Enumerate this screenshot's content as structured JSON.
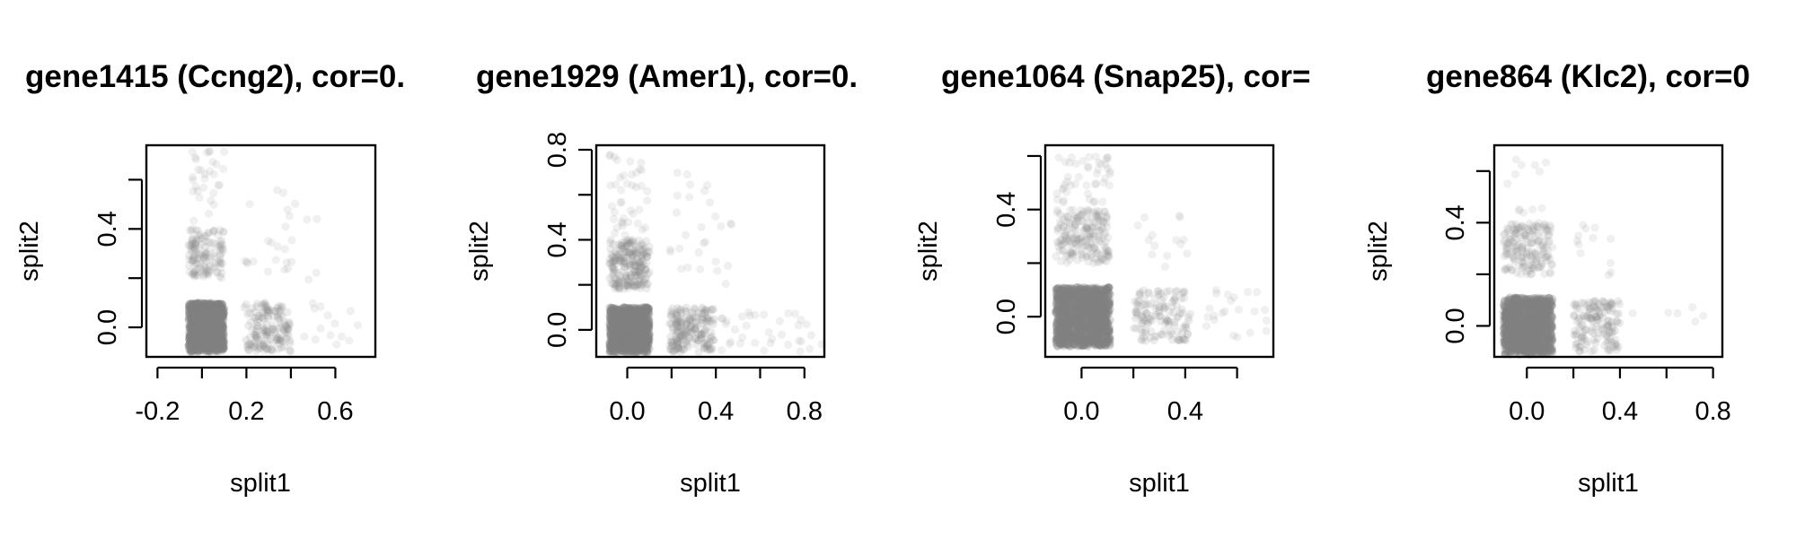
{
  "chart_data": [
    {
      "type": "scatter",
      "title": "gene1415 (Ccng2), cor=0.",
      "xlabel": "split1",
      "ylabel": "split2",
      "xticks": [
        "-0.2",
        "0.2",
        "0.6"
      ],
      "yticks": [
        "0.0",
        "0.4"
      ],
      "xlim": [
        -0.25,
        0.78
      ],
      "ylim": [
        -0.12,
        0.74
      ],
      "grid": false,
      "point_color": "#808080",
      "clusters": [
        {
          "x_range": [
            -0.06,
            0.1
          ],
          "y_range": [
            -0.1,
            0.1
          ],
          "count": 900,
          "opacity": 0.3
        },
        {
          "x_range": [
            -0.06,
            0.1
          ],
          "y_range": [
            0.2,
            0.4
          ],
          "count": 140,
          "opacity": 0.13
        },
        {
          "x_range": [
            0.19,
            0.4
          ],
          "y_range": [
            -0.1,
            0.1
          ],
          "count": 150,
          "opacity": 0.15
        },
        {
          "x_range": [
            0.42,
            0.72
          ],
          "y_range": [
            -0.07,
            0.1
          ],
          "count": 14,
          "opacity": 0.12
        },
        {
          "x_range": [
            0.19,
            0.52
          ],
          "y_range": [
            0.18,
            0.56
          ],
          "count": 26,
          "opacity": 0.12
        },
        {
          "x_range": [
            -0.05,
            0.1
          ],
          "y_range": [
            0.42,
            0.72
          ],
          "count": 30,
          "opacity": 0.12
        }
      ]
    },
    {
      "type": "scatter",
      "title": "gene1929 (Amer1), cor=0.",
      "xlabel": "split1",
      "ylabel": "split2",
      "xticks": [
        "0.0",
        "0.4",
        "0.8"
      ],
      "yticks": [
        "0.0",
        "0.4",
        "0.8"
      ],
      "xlim": [
        -0.14,
        0.89
      ],
      "ylim": [
        -0.12,
        0.82
      ],
      "grid": false,
      "point_color": "#808080",
      "clusters": [
        {
          "x_range": [
            -0.08,
            0.1
          ],
          "y_range": [
            -0.1,
            0.1
          ],
          "count": 900,
          "opacity": 0.3
        },
        {
          "x_range": [
            -0.08,
            0.1
          ],
          "y_range": [
            0.18,
            0.4
          ],
          "count": 220,
          "opacity": 0.14
        },
        {
          "x_range": [
            0.19,
            0.4
          ],
          "y_range": [
            -0.1,
            0.1
          ],
          "count": 180,
          "opacity": 0.16
        },
        {
          "x_range": [
            0.42,
            0.88
          ],
          "y_range": [
            -0.1,
            0.08
          ],
          "count": 35,
          "opacity": 0.12
        },
        {
          "x_range": [
            0.19,
            0.48
          ],
          "y_range": [
            0.18,
            0.7
          ],
          "count": 28,
          "opacity": 0.12
        },
        {
          "x_range": [
            -0.08,
            0.1
          ],
          "y_range": [
            0.42,
            0.78
          ],
          "count": 40,
          "opacity": 0.12
        }
      ]
    },
    {
      "type": "scatter",
      "title": "gene1064 (Snap25), cor=",
      "xlabel": "split1",
      "ylabel": "split2",
      "xticks": [
        "0.0",
        "0.4"
      ],
      "yticks": [
        "0.0",
        "0.4"
      ],
      "xlim": [
        -0.14,
        0.74
      ],
      "ylim": [
        -0.15,
        0.64
      ],
      "grid": false,
      "point_color": "#808080",
      "clusters": [
        {
          "x_range": [
            -0.1,
            0.11
          ],
          "y_range": [
            -0.11,
            0.11
          ],
          "count": 1100,
          "opacity": 0.3
        },
        {
          "x_range": [
            -0.1,
            0.11
          ],
          "y_range": [
            0.2,
            0.4
          ],
          "count": 200,
          "opacity": 0.13
        },
        {
          "x_range": [
            0.2,
            0.42
          ],
          "y_range": [
            -0.09,
            0.1
          ],
          "count": 130,
          "opacity": 0.14
        },
        {
          "x_range": [
            0.42,
            0.72
          ],
          "y_range": [
            -0.08,
            0.1
          ],
          "count": 22,
          "opacity": 0.12
        },
        {
          "x_range": [
            0.2,
            0.42
          ],
          "y_range": [
            0.18,
            0.4
          ],
          "count": 14,
          "opacity": 0.12
        },
        {
          "x_range": [
            -0.1,
            0.11
          ],
          "y_range": [
            0.42,
            0.6
          ],
          "count": 45,
          "opacity": 0.12
        }
      ]
    },
    {
      "type": "scatter",
      "title": "gene864 (Klc2), cor=0",
      "xlabel": "split1",
      "ylabel": "split2",
      "xticks": [
        "0.0",
        "0.4",
        "0.8"
      ],
      "yticks": [
        "0.0",
        "0.4"
      ],
      "xlim": [
        -0.14,
        0.84
      ],
      "ylim": [
        -0.12,
        0.7
      ],
      "grid": false,
      "point_color": "#808080",
      "clusters": [
        {
          "x_range": [
            -0.1,
            0.11
          ],
          "y_range": [
            -0.11,
            0.11
          ],
          "count": 1000,
          "opacity": 0.3
        },
        {
          "x_range": [
            -0.1,
            0.11
          ],
          "y_range": [
            0.2,
            0.4
          ],
          "count": 180,
          "opacity": 0.13
        },
        {
          "x_range": [
            0.2,
            0.4
          ],
          "y_range": [
            -0.1,
            0.1
          ],
          "count": 140,
          "opacity": 0.15
        },
        {
          "x_range": [
            0.42,
            0.84
          ],
          "y_range": [
            -0.07,
            0.08
          ],
          "count": 6,
          "opacity": 0.12
        },
        {
          "x_range": [
            0.2,
            0.4
          ],
          "y_range": [
            0.18,
            0.4
          ],
          "count": 12,
          "opacity": 0.12
        },
        {
          "x_range": [
            -0.1,
            0.11
          ],
          "y_range": [
            0.42,
            0.66
          ],
          "count": 12,
          "opacity": 0.12
        }
      ]
    }
  ]
}
